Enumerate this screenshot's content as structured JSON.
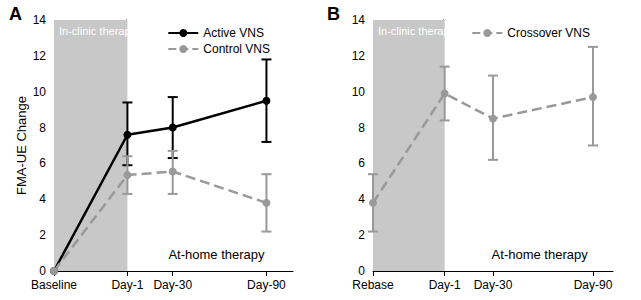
{
  "chart_data": [
    {
      "type": "line",
      "title": "A",
      "ylabel": "FMA-UE Change",
      "x": [
        -46,
        1,
        30,
        90
      ],
      "xlim": [
        -46,
        107
      ],
      "xticks": [
        {
          "value": -46,
          "label": "Baseline"
        },
        {
          "value": 1,
          "label": "Day-1"
        },
        {
          "value": 30,
          "label": "Day-30"
        },
        {
          "value": 90,
          "label": "Day-90"
        }
      ],
      "ylim": [
        0,
        14
      ],
      "yticks": [
        0,
        2,
        4,
        6,
        8,
        10,
        12,
        14
      ],
      "grid": false,
      "legend": "upper right",
      "shaded_region": {
        "x": [
          -46,
          1
        ],
        "label": "In-clinic therapy"
      },
      "annotation": {
        "text": "At-home therapy",
        "x": 58,
        "y": 0.9
      },
      "series": [
        {
          "name": "Active VNS",
          "color": "#000000",
          "line_style": "solid",
          "marker": "circle",
          "values": [
            0,
            7.6,
            8.0,
            9.5
          ],
          "ci_low": [
            null,
            5.9,
            6.3,
            7.2
          ],
          "ci_high": [
            null,
            9.4,
            9.7,
            11.8
          ]
        },
        {
          "name": "Control VNS",
          "color": "#999999",
          "line_style": "dashed",
          "marker": "circle",
          "values": [
            0,
            5.35,
            5.55,
            3.8
          ],
          "ci_low": [
            null,
            4.3,
            4.3,
            2.2
          ],
          "ci_high": [
            null,
            6.4,
            6.7,
            5.4
          ]
        }
      ]
    },
    {
      "type": "line",
      "title": "B",
      "x": [
        -42,
        1,
        30,
        90
      ],
      "xlim": [
        -42,
        102
      ],
      "xticks": [
        {
          "value": -42,
          "label": "Rebase"
        },
        {
          "value": 1,
          "label": "Day-1"
        },
        {
          "value": 30,
          "label": "Day-30"
        },
        {
          "value": 90,
          "label": "Day-90"
        }
      ],
      "ylim": [
        0,
        14
      ],
      "yticks": [
        0,
        2,
        4,
        6,
        8,
        10,
        12,
        14
      ],
      "grid": false,
      "legend": "upper right",
      "shaded_region": {
        "x": [
          -42,
          1
        ],
        "label": "In-clinic therapy"
      },
      "annotation": {
        "text": "At-home therapy",
        "x": 58,
        "y": 0.9
      },
      "series": [
        {
          "name": "Crossover VNS",
          "color": "#999999",
          "line_style": "dashed",
          "marker": "circle",
          "values": [
            3.8,
            9.9,
            8.5,
            9.7
          ],
          "ci_low": [
            2.2,
            8.4,
            6.2,
            7.0
          ],
          "ci_high": [
            5.4,
            11.4,
            10.9,
            12.5
          ]
        }
      ]
    }
  ]
}
